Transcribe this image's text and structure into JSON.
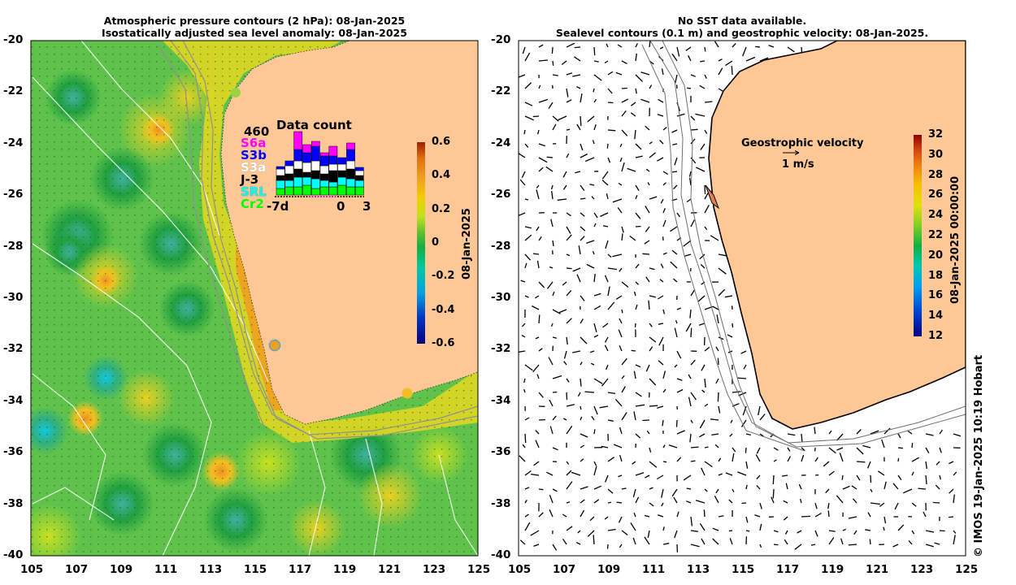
{
  "left_panel": {
    "title_line1": "Atmospheric pressure contours (2 hPa): 08-Jan-2025",
    "title_line2": "Isostatically adjusted sea level anomaly: 08-Jan-2025",
    "colorbar_label": "08-Jan-2025",
    "colorbar_ticks": [
      "0.6",
      "0.4",
      "0.2",
      "0",
      "-0.2",
      "-0.4",
      "-0.6"
    ],
    "colorbar_colors": [
      "#00007f",
      "#0030c0",
      "#00a0e0",
      "#00c8a0",
      "#10b040",
      "#60c030",
      "#c0e020",
      "#f0d000",
      "#f0a020",
      "#e07010",
      "#a02000"
    ]
  },
  "right_panel": {
    "title_line1": "No SST data available.",
    "title_line2": "Sealevel contours (0.1 m) and geostrophic velocity: 08-Jan-2025.",
    "colorbar_label": "08-Jan-2025 00:00:00",
    "colorbar_ticks": [
      "32",
      "30",
      "28",
      "26",
      "24",
      "22",
      "20",
      "18",
      "16",
      "14",
      "12"
    ],
    "velocity_title": "Geostrophic velocity",
    "velocity_scale": "1 m/s"
  },
  "axes": {
    "lat_ticks": [
      "-20",
      "-22",
      "-24",
      "-26",
      "-28",
      "-30",
      "-32",
      "-34",
      "-36",
      "-38",
      "-40"
    ],
    "lon_ticks": [
      "105",
      "107",
      "109",
      "111",
      "113",
      "115",
      "117",
      "119",
      "121",
      "123",
      "125"
    ]
  },
  "data_count": {
    "title": "Data count",
    "total": "460",
    "missions": [
      {
        "label": "S6a",
        "color": "#ff00ff"
      },
      {
        "label": "S3b",
        "color": "#0000ff"
      },
      {
        "label": "S3a",
        "color": "#ffffff"
      },
      {
        "label": "J-3",
        "color": "#000000"
      },
      {
        "label": "SRL",
        "color": "#00ffff"
      },
      {
        "label": "Cr2",
        "color": "#00ff00"
      }
    ],
    "axis_labels": [
      "-7d",
      "0",
      "3"
    ]
  },
  "credit": "© IMOS 19-Jan-2025 10:19 Hobart",
  "colors": {
    "land": "#fec896",
    "ocean_base": "#5fc34b"
  }
}
